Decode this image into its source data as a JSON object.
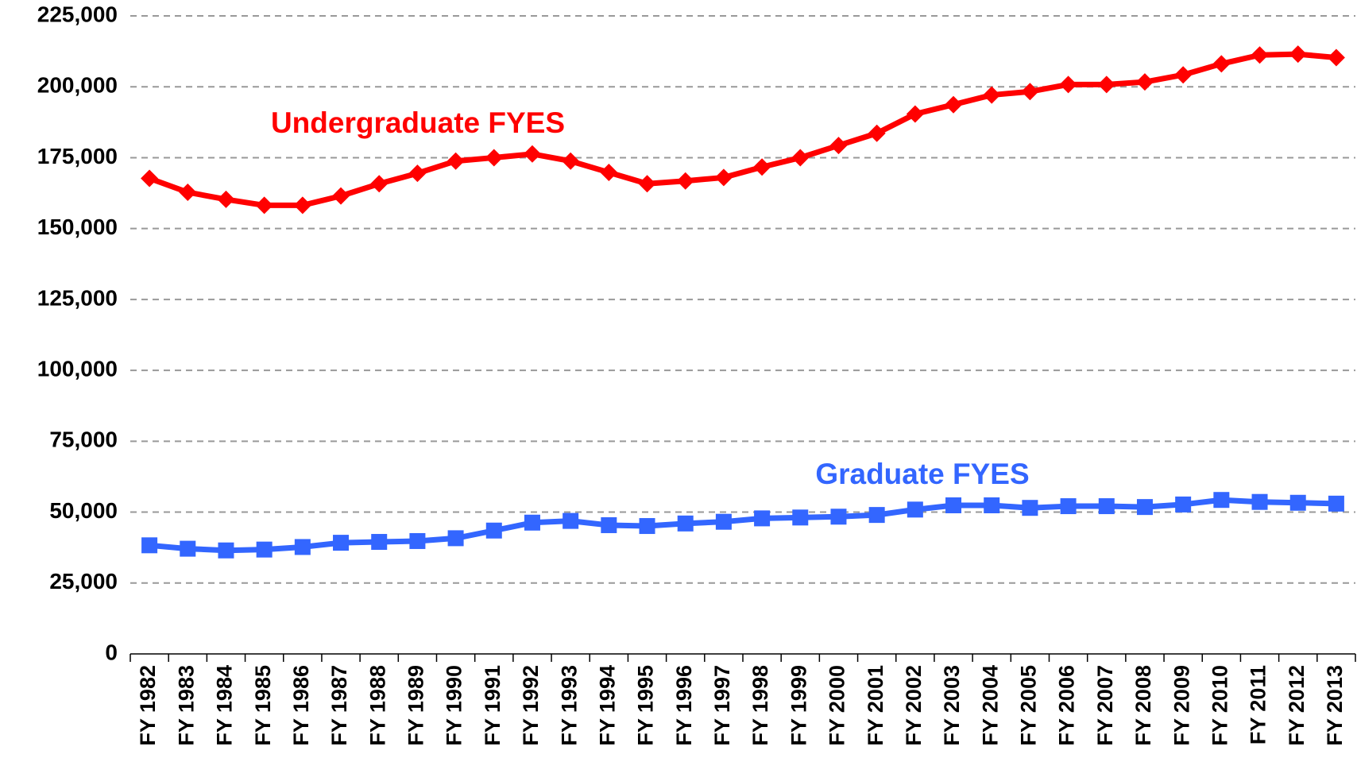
{
  "chart_data": {
    "type": "line",
    "categories": [
      "FY 1982",
      "FY 1983",
      "FY 1984",
      "FY 1985",
      "FY 1986",
      "FY 1987",
      "FY 1988",
      "FY 1989",
      "FY 1990",
      "FY 1991",
      "FY 1992",
      "FY 1993",
      "FY 1994",
      "FY 1995",
      "FY 1996",
      "FY 1997",
      "FY 1998",
      "FY 1999",
      "FY 2000",
      "FY 2001",
      "FY 2002",
      "FY 2003",
      "FY 2004",
      "FY 2005",
      "FY 2006",
      "FY 2007",
      "FY 2008",
      "FY 2009",
      "FY 2010",
      "FY 2011",
      "FY 2012",
      "FY 2013"
    ],
    "series": [
      {
        "name": "Undergraduate FYES",
        "color": "#ff0000",
        "marker": "diamond",
        "values": [
          167700,
          162800,
          160300,
          158200,
          158200,
          161500,
          165800,
          169500,
          173800,
          175000,
          176300,
          173800,
          169800,
          165800,
          166800,
          168000,
          171700,
          175000,
          179300,
          183600,
          190400,
          193700,
          197100,
          198300,
          200800,
          200800,
          201700,
          204200,
          208100,
          211200,
          211500,
          210300
        ]
      },
      {
        "name": "Graduate FYES",
        "color": "#3366ff",
        "marker": "square",
        "values": [
          38300,
          37100,
          36500,
          36800,
          37700,
          39200,
          39500,
          39800,
          40800,
          43500,
          46300,
          46900,
          45400,
          45100,
          46000,
          46600,
          47800,
          48100,
          48400,
          49000,
          50900,
          52400,
          52400,
          51500,
          52100,
          52100,
          51800,
          52700,
          54300,
          53600,
          53300,
          53000
        ]
      }
    ],
    "ylim": [
      0,
      225000
    ],
    "yticks": [
      0,
      {
        "value": 25000,
        "label": "25,000"
      },
      {
        "value": 50000,
        "label": "50,000"
      },
      {
        "value": 75000,
        "label": "75,000"
      },
      {
        "value": 100000,
        "label": "100,000"
      },
      {
        "value": 125000,
        "label": "125,000"
      },
      {
        "value": 150000,
        "label": "150,000"
      },
      {
        "value": 175000,
        "label": "175,000"
      },
      {
        "value": 200000,
        "label": "200,000"
      },
      {
        "value": 225000,
        "label": "225,000"
      }
    ],
    "grid": true
  }
}
